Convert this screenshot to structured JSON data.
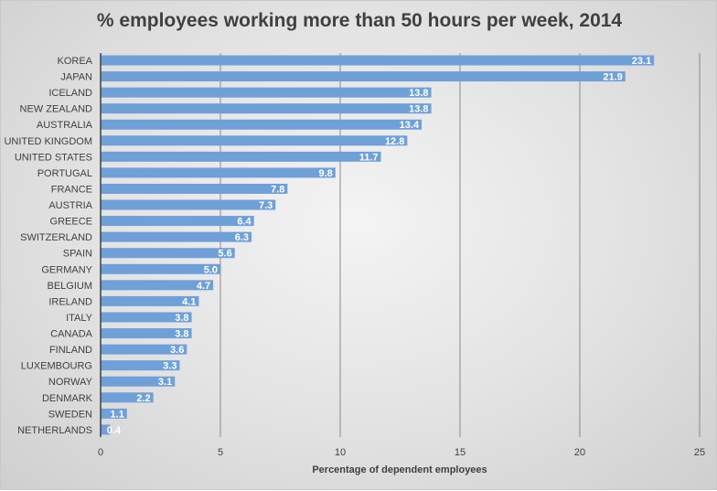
{
  "chart_data": {
    "type": "bar",
    "orientation": "horizontal",
    "title": "% employees working more than 50 hours per week, 2014",
    "xlabel": "Percentage of dependent  employees",
    "ylabel": "",
    "xlim": [
      0,
      25
    ],
    "xticks": [
      0,
      5,
      10,
      15,
      20,
      25
    ],
    "grid": true,
    "bar_color": "#6fa0d8",
    "categories": [
      "KOREA",
      "JAPAN",
      "ICELAND",
      "NEW ZEALAND",
      "AUSTRALIA",
      "UNITED KINGDOM",
      "UNITED STATES",
      "PORTUGAL",
      "FRANCE",
      "AUSTRIA",
      "GREECE",
      "SWITZERLAND",
      "SPAIN",
      "GERMANY",
      "BELGIUM",
      "IRELAND",
      "ITALY",
      "CANADA",
      "FINLAND",
      "LUXEMBOURG",
      "NORWAY",
      "DENMARK",
      "SWEDEN",
      "NETHERLANDS"
    ],
    "values": [
      23.1,
      21.9,
      13.8,
      13.8,
      13.4,
      12.8,
      11.7,
      9.8,
      7.8,
      7.3,
      6.4,
      6.3,
      5.6,
      5.0,
      4.7,
      4.1,
      3.8,
      3.8,
      3.6,
      3.3,
      3.1,
      2.2,
      1.1,
      0.4
    ]
  }
}
